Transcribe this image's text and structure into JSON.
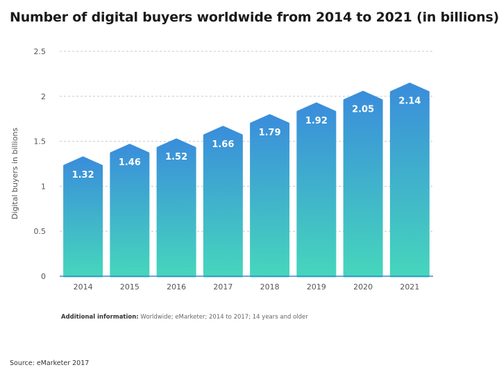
{
  "header": {
    "title": "Number of digital buyers worldwide from 2014 to 2021 (in billions)"
  },
  "chart_data": {
    "type": "bar",
    "title": "Number of digital buyers worldwide from 2014 to 2021 (in billions)",
    "categories": [
      "2014",
      "2015",
      "2016",
      "2017",
      "2018",
      "2019",
      "2020",
      "2021"
    ],
    "values": [
      1.32,
      1.46,
      1.52,
      1.66,
      1.79,
      1.92,
      2.05,
      2.14
    ],
    "data_labels": [
      "1.32",
      "1.46",
      "1.52",
      "1.66",
      "1.79",
      "1.92",
      "2.05",
      "2.14"
    ],
    "xlabel": "",
    "ylabel": "Digital buyers in billions",
    "ylim": [
      0,
      2.5
    ],
    "yticks": [
      0,
      0.5,
      1,
      1.5,
      2,
      2.5
    ],
    "ytick_labels": [
      "0",
      "0.5",
      "1",
      "1.5",
      "2",
      "2.5"
    ],
    "grid": true,
    "colors": {
      "bar_top": "#3a8ddb",
      "bar_bottom": "#46d6bc",
      "grid": "#c8c8c8",
      "axis": "#3d86d6"
    }
  },
  "footer": {
    "info_label": "Additional information:",
    "info_text": "Worldwide; eMarketer; 2014 to 2017; 14 years and older",
    "source": "Source: eMarketer 2017"
  }
}
